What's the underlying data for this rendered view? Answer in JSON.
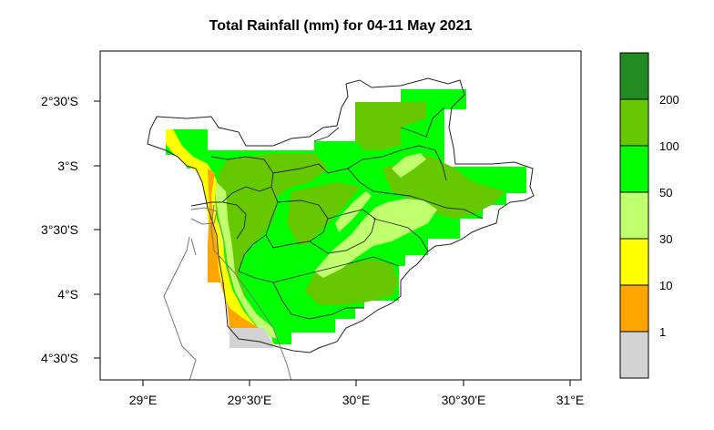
{
  "title": "Total Rainfall (mm) for 04-11 May 2021",
  "map": {
    "lon_range": [
      28.8,
      30.8
    ],
    "lat_range": [
      -4.65,
      -2.15
    ],
    "x_ticks": [
      {
        "value": 29.0,
        "label": "29°E"
      },
      {
        "value": 29.5,
        "label": "29°30'E"
      },
      {
        "value": 30.0,
        "label": "30°E"
      },
      {
        "value": 30.5,
        "label": "30°30'E"
      },
      {
        "value": 31.0,
        "label": "31°E"
      }
    ],
    "y_ticks": [
      {
        "value": -2.5,
        "label": "2°30'S"
      },
      {
        "value": -3.0,
        "label": "3°S"
      },
      {
        "value": -3.5,
        "label": "3°30'S"
      },
      {
        "value": -4.0,
        "label": "4°S"
      },
      {
        "value": -4.5,
        "label": "4°30'S"
      }
    ]
  },
  "legend": {
    "bins": [
      {
        "color": "#d3d3d3"
      },
      {
        "color": "#ffa500"
      },
      {
        "color": "#ffff00"
      },
      {
        "color": "#c0ff6e"
      },
      {
        "color": "#00ff00"
      },
      {
        "color": "#66c800"
      },
      {
        "color": "#228b22"
      }
    ],
    "labels": [
      "1",
      "10",
      "30",
      "50",
      "100",
      "200"
    ]
  },
  "colors": {
    "background": "#ffffff",
    "border": "#000000"
  }
}
